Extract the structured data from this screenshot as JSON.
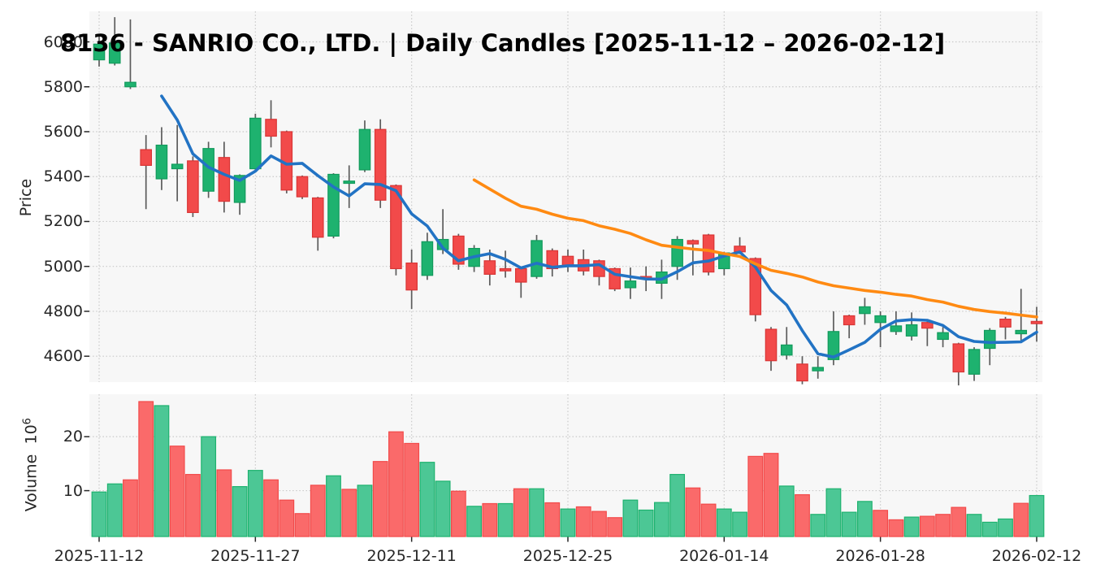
{
  "title": "8136 - SANRIO CO., LTD. | Daily Candles [2025-11-12 – 2026-02-12]",
  "price_axis": {
    "label": "Price",
    "tick_values": [
      6000,
      5800,
      5600,
      5400,
      5200,
      5000,
      4800,
      4600
    ]
  },
  "volume_axis": {
    "label": "Volume",
    "unit_base": "10",
    "unit_exp": "6",
    "tick_values": [
      20,
      10
    ]
  },
  "x_axis": {
    "ticks": [
      {
        "label": "2025-11-12",
        "index": 0
      },
      {
        "label": "2025-11-27",
        "index": 10
      },
      {
        "label": "2025-12-11",
        "index": 20
      },
      {
        "label": "2025-12-25",
        "index": 30
      },
      {
        "label": "2026-01-14",
        "index": 40
      },
      {
        "label": "2026-01-28",
        "index": 50
      },
      {
        "label": "2026-02-12",
        "index": 60
      }
    ]
  },
  "colors": {
    "figure_bg": "#ffffff",
    "panel_bg": "#f7f7f7",
    "grid": "#c9c9c9",
    "tick_text": "#262626",
    "wick": "#5c5c5c",
    "candle_up_fill": "#1eb26f",
    "candle_up_edge": "#129a5c",
    "candle_down_fill": "#f24a4a",
    "candle_down_edge": "#d93535",
    "volume_up_fill": "#4cc795",
    "volume_up_edge": "#1eb26f",
    "volume_down_fill": "#fa6a6a",
    "volume_down_edge": "#f24a4a",
    "sma_fast": "#2273c4",
    "sma_slow": "#ff8a12"
  },
  "chart_data": {
    "type": "candlestick+volume",
    "title": "8136 - SANRIO CO., LTD. | Daily Candles [2025-11-12 – 2026-02-12]",
    "ylabel_price": "Price",
    "ylabel_volume": "Volume 10^6",
    "grid": "dotted",
    "legend_position": "none",
    "price_ylim": [
      4480,
      6136
    ],
    "volume_ylim_millions": [
      1.5,
      27.8
    ],
    "overlays": [
      {
        "name": "sma-fast",
        "window": 5,
        "source": "close",
        "color": "#2273c4"
      },
      {
        "name": "sma-slow",
        "window": 25,
        "source": "close",
        "color": "#ff8a12"
      }
    ],
    "dates": [
      "2025-11-12",
      "2025-11-13",
      "2025-11-14",
      "2025-11-17",
      "2025-11-18",
      "2025-11-19",
      "2025-11-20",
      "2025-11-21",
      "2025-11-25",
      "2025-11-26",
      "2025-11-27",
      "2025-11-28",
      "2025-12-01",
      "2025-12-02",
      "2025-12-03",
      "2025-12-04",
      "2025-12-05",
      "2025-12-08",
      "2025-12-09",
      "2025-12-10",
      "2025-12-11",
      "2025-12-12",
      "2025-12-15",
      "2025-12-16",
      "2025-12-17",
      "2025-12-18",
      "2025-12-19",
      "2025-12-22",
      "2025-12-23",
      "2025-12-24",
      "2025-12-25",
      "2025-12-26",
      "2025-12-29",
      "2025-12-30",
      "2026-01-05",
      "2026-01-06",
      "2026-01-07",
      "2026-01-08",
      "2026-01-09",
      "2026-01-13",
      "2026-01-14",
      "2026-01-15",
      "2026-01-16",
      "2026-01-19",
      "2026-01-20",
      "2026-01-21",
      "2026-01-22",
      "2026-01-23",
      "2026-01-26",
      "2026-01-27",
      "2026-01-28",
      "2026-01-29",
      "2026-01-30",
      "2026-02-02",
      "2026-02-03",
      "2026-02-04",
      "2026-02-05",
      "2026-02-06",
      "2026-02-09",
      "2026-02-10",
      "2026-02-12"
    ],
    "open": [
      5920,
      5905,
      5800,
      5520,
      5390,
      5435,
      5470,
      5335,
      5485,
      5285,
      5435,
      5655,
      5600,
      5400,
      5305,
      5135,
      5370,
      5430,
      5610,
      5360,
      5015,
      4960,
      5075,
      5135,
      5000,
      5025,
      4990,
      4990,
      4955,
      5070,
      5045,
      5030,
      5025,
      4990,
      4905,
      4955,
      4925,
      5000,
      5115,
      5140,
      4990,
      5090,
      5035,
      4720,
      4605,
      4565,
      4535,
      4585,
      4780,
      4790,
      4750,
      4710,
      4690,
      4750,
      4675,
      4655,
      4520,
      4635,
      4765,
      4700,
      4755
    ],
    "high": [
      6030,
      6110,
      6100,
      5585,
      5620,
      5630,
      5490,
      5555,
      5555,
      5410,
      5680,
      5740,
      5605,
      5405,
      5310,
      5415,
      5450,
      5650,
      5655,
      5365,
      5075,
      5150,
      5255,
      5145,
      5095,
      5075,
      5070,
      4995,
      5140,
      5080,
      5075,
      5075,
      5030,
      4995,
      4995,
      5000,
      5030,
      5135,
      5120,
      5145,
      5065,
      5130,
      5040,
      4730,
      4730,
      4600,
      4600,
      4800,
      4785,
      4860,
      4800,
      4800,
      4795,
      4755,
      4730,
      4660,
      4640,
      4725,
      4775,
      4900,
      4820
    ],
    "low": [
      5890,
      5895,
      5790,
      5255,
      5340,
      5290,
      5220,
      5305,
      5240,
      5230,
      5430,
      5530,
      5325,
      5300,
      5070,
      5125,
      5260,
      5420,
      5260,
      4960,
      4810,
      4940,
      5055,
      4985,
      4975,
      4915,
      4950,
      4860,
      4945,
      4955,
      4975,
      4960,
      4915,
      4890,
      4855,
      4890,
      4855,
      4940,
      4960,
      4960,
      4960,
      5055,
      4755,
      4535,
      4585,
      4475,
      4500,
      4560,
      4680,
      4740,
      4640,
      4695,
      4670,
      4645,
      4640,
      4470,
      4490,
      4560,
      4675,
      4670,
      4665
    ],
    "close": [
      5990,
      5995,
      5820,
      5450,
      5540,
      5455,
      5240,
      5525,
      5290,
      5405,
      5660,
      5580,
      5340,
      5310,
      5130,
      5410,
      5380,
      5610,
      5295,
      4990,
      4895,
      5110,
      5120,
      5010,
      5080,
      4965,
      4980,
      4930,
      5115,
      4990,
      5000,
      4980,
      4955,
      4900,
      4935,
      4950,
      4975,
      5120,
      5100,
      4975,
      5060,
      5065,
      4785,
      4580,
      4650,
      4490,
      4550,
      4710,
      4740,
      4820,
      4780,
      4735,
      4740,
      4725,
      4705,
      4530,
      4630,
      4715,
      4730,
      4715,
      4745
    ],
    "volume_millions": [
      9.75,
      11.25,
      12.0,
      26.5,
      25.75,
      18.25,
      13.0,
      20.0,
      13.85,
      10.75,
      13.75,
      12.0,
      8.25,
      5.75,
      11.0,
      12.75,
      10.25,
      11.0,
      15.4,
      20.9,
      18.75,
      15.25,
      11.75,
      9.9,
      7.1,
      7.6,
      7.6,
      10.35,
      10.35,
      7.75,
      6.6,
      7.0,
      6.15,
      5.0,
      8.25,
      6.4,
      7.8,
      13.0,
      10.5,
      7.5,
      6.6,
      6.0,
      16.35,
      16.9,
      10.85,
      9.25,
      5.6,
      10.35,
      6.0,
      8.0,
      6.35,
      4.6,
      5.1,
      5.25,
      5.6,
      6.9,
      5.6,
      4.15,
      4.75,
      7.65,
      9.1
    ]
  }
}
